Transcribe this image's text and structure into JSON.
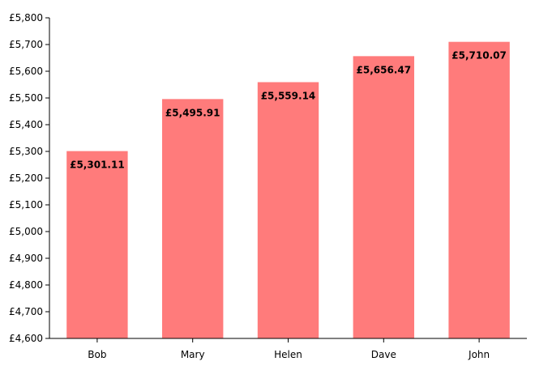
{
  "chart_data": {
    "type": "bar",
    "title": "",
    "xlabel": "",
    "ylabel": "",
    "categories": [
      "Bob",
      "Mary",
      "Helen",
      "Dave",
      "John"
    ],
    "values": [
      5301.11,
      5495.91,
      5559.14,
      5656.47,
      5710.07
    ],
    "data_labels": [
      "£5,301.11",
      "£5,495.91",
      "£5,559.14",
      "£5,656.47",
      "£5,710.07"
    ],
    "ylim": [
      4600,
      5800
    ],
    "yticks": [
      4600,
      4700,
      4800,
      4900,
      5000,
      5100,
      5200,
      5300,
      5400,
      5500,
      5600,
      5700,
      5800
    ],
    "ytick_labels": [
      "£4,600",
      "£4,700",
      "£4,800",
      "£4,900",
      "£5,000",
      "£5,100",
      "£5,200",
      "£5,300",
      "£5,400",
      "£5,500",
      "£5,600",
      "£5,700",
      "£5,800"
    ],
    "grid": false,
    "legend": "none",
    "bar_color": "#ff7b7b",
    "axis_color": "#000000"
  }
}
